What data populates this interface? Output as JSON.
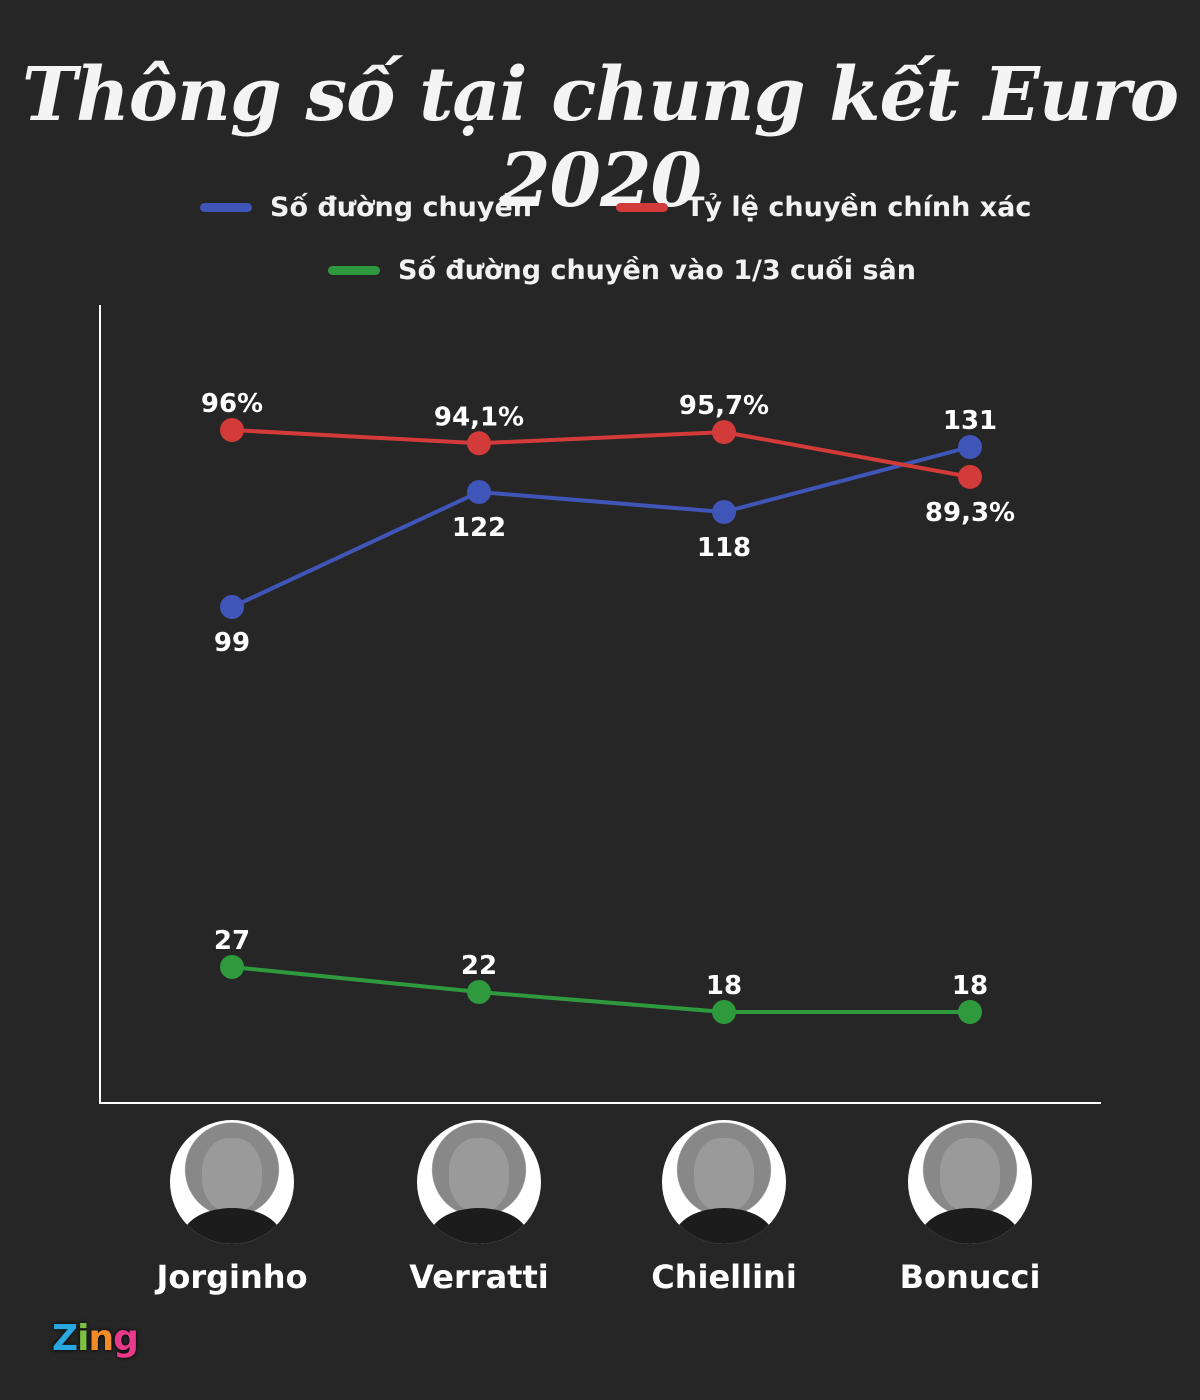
{
  "title": "Thông số tại chung kết Euro 2020",
  "logo": {
    "z": "Z",
    "i": "i",
    "n": "n",
    "g": "g",
    "text": "Zing"
  },
  "colors": {
    "blue": "#3f55b7",
    "red": "#d33a3a",
    "green": "#2e9a3d",
    "axis": "#ffffff"
  },
  "chart_data": {
    "type": "line",
    "title": "Thông số tại chung kết Euro 2020",
    "categories": [
      "Jorginho",
      "Verratti",
      "Chiellini",
      "Bonucci"
    ],
    "series": [
      {
        "name": "Số đường chuyền",
        "color": "#3f55b7",
        "values": [
          99,
          122,
          118,
          131
        ],
        "labels": [
          "99",
          "122",
          "118",
          "131"
        ]
      },
      {
        "name": "Tỷ lệ chuyền chính xác",
        "color": "#d33a3a",
        "values": [
          96,
          94.1,
          95.7,
          89.3
        ],
        "labels": [
          "96%",
          "94,1%",
          "95,7%",
          "89,3%"
        ]
      },
      {
        "name": "Số đường chuyền vào 1/3 cuối sân",
        "color": "#2e9a3d",
        "values": [
          27,
          22,
          18,
          18
        ],
        "labels": [
          "27",
          "22",
          "18",
          "18"
        ]
      }
    ],
    "legend_position": "top",
    "grid": false
  }
}
